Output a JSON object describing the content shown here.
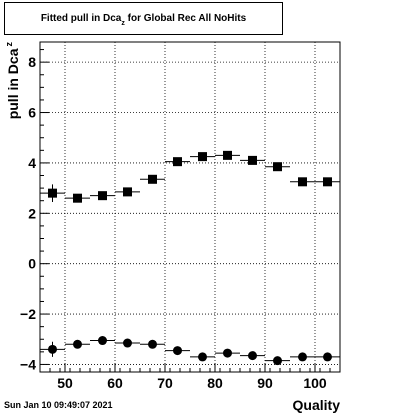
{
  "title": {
    "main": "Fitted pull in Dca",
    "subscript": "z",
    "rest": " for Global Rec All NoHits"
  },
  "footer": {
    "timestamp": "Sun Jan 10 09:49:07 2021"
  },
  "chart_data": {
    "type": "scatter",
    "title": "Fitted pull in Dca_z for Global Rec All NoHits",
    "xlabel": "Quality",
    "ylabel": "pull in Dca",
    "ylabel_subscript": "z",
    "xlim": [
      45,
      105
    ],
    "ylim": [
      -4.3,
      8.8
    ],
    "x_ticks": [
      50,
      60,
      70,
      80,
      90,
      100
    ],
    "y_ticks": [
      -4,
      -2,
      0,
      2,
      4,
      6,
      8
    ],
    "grid": true,
    "x_bin_halfwidth": 2.5,
    "series": [
      {
        "marker": "square",
        "x": [
          47.5,
          52.5,
          57.5,
          62.5,
          67.5,
          72.5,
          77.5,
          82.5,
          87.5,
          92.5,
          97.5,
          102.5
        ],
        "y": [
          2.8,
          2.6,
          2.7,
          2.85,
          3.35,
          4.05,
          4.25,
          4.3,
          4.1,
          3.85,
          3.25,
          3.25
        ],
        "yerr": [
          0.35,
          0.15,
          0.12,
          0.1,
          0.1,
          0.1,
          0.1,
          0.1,
          0.1,
          0.1,
          0.1,
          0.1
        ]
      },
      {
        "marker": "circle",
        "x": [
          47.5,
          52.5,
          57.5,
          62.5,
          67.5,
          72.5,
          77.5,
          82.5,
          87.5,
          92.5,
          97.5,
          102.5
        ],
        "y": [
          -3.4,
          -3.2,
          -3.05,
          -3.15,
          -3.2,
          -3.45,
          -3.7,
          -3.55,
          -3.65,
          -3.85,
          -3.7,
          -3.7
        ],
        "yerr": [
          0.3,
          0.12,
          0.1,
          0.1,
          0.08,
          0.08,
          0.08,
          0.08,
          0.08,
          0.08,
          0.08,
          0.08
        ]
      }
    ]
  }
}
